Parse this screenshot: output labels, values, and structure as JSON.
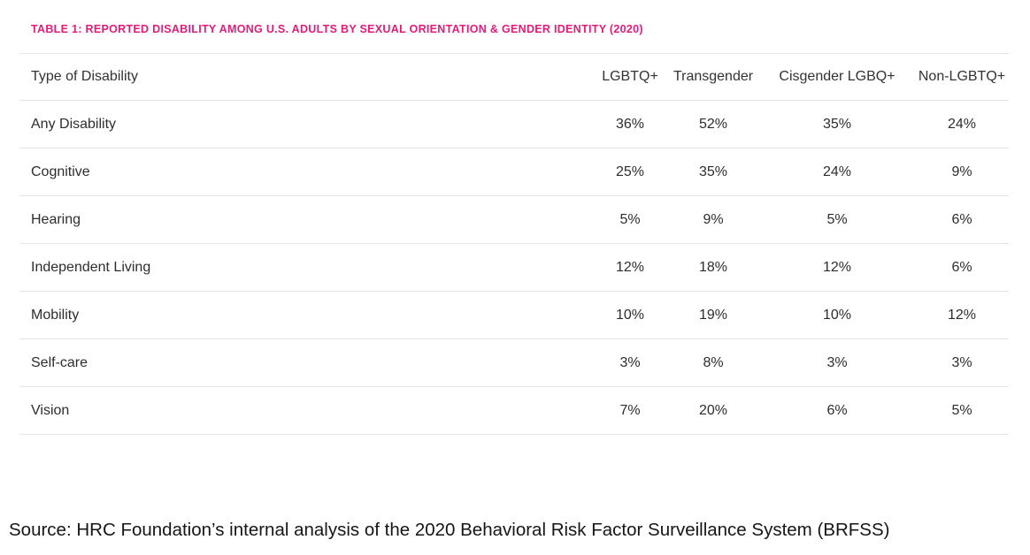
{
  "title": "TABLE 1: REPORTED DISABILITY AMONG U.S. ADULTS BY SEXUAL ORIENTATION & GENDER IDENTITY (2020)",
  "accent_color": "#e31c79",
  "divider_color": "#e3e3e3",
  "table": {
    "row_header_label": "Type of Disability",
    "columns": [
      "LGBTQ+",
      "Transgender",
      "Cisgender LGBQ+",
      "Non-LGBTQ+"
    ],
    "rows": [
      {
        "label": "Any Disability",
        "values": [
          "36%",
          "52%",
          "35%",
          "24%"
        ]
      },
      {
        "label": "Cognitive",
        "values": [
          "25%",
          "35%",
          "24%",
          "9%"
        ]
      },
      {
        "label": "Hearing",
        "values": [
          "5%",
          "9%",
          "5%",
          "6%"
        ]
      },
      {
        "label": "Independent Living",
        "values": [
          "12%",
          "18%",
          "12%",
          "6%"
        ]
      },
      {
        "label": "Mobility",
        "values": [
          "10%",
          "19%",
          "10%",
          "12%"
        ]
      },
      {
        "label": "Self-care",
        "values": [
          "3%",
          "8%",
          "3%",
          "3%"
        ]
      },
      {
        "label": "Vision",
        "values": [
          "7%",
          "20%",
          "6%",
          "5%"
        ]
      }
    ]
  },
  "source": "Source: HRC Foundation’s internal analysis of the 2020 Behavioral Risk Factor Surveillance System (BRFSS)",
  "chart_data": {
    "type": "table",
    "title": "TABLE 1: REPORTED DISABILITY AMONG U.S. ADULTS BY SEXUAL ORIENTATION & GENDER IDENTITY (2020)",
    "categories": [
      "Any Disability",
      "Cognitive",
      "Hearing",
      "Independent Living",
      "Mobility",
      "Self-care",
      "Vision"
    ],
    "series": [
      {
        "name": "LGBTQ+",
        "values": [
          36,
          25,
          5,
          12,
          10,
          3,
          7
        ]
      },
      {
        "name": "Transgender",
        "values": [
          52,
          35,
          9,
          18,
          19,
          8,
          20
        ]
      },
      {
        "name": "Cisgender LGBQ+",
        "values": [
          35,
          24,
          5,
          12,
          10,
          3,
          6
        ]
      },
      {
        "name": "Non-LGBTQ+",
        "values": [
          24,
          9,
          6,
          6,
          12,
          3,
          5
        ]
      }
    ],
    "unit": "%",
    "xlabel": "Type of Disability",
    "ylabel": "",
    "source": "Source: HRC Foundation’s internal analysis of the 2020 Behavioral Risk Factor Surveillance System (BRFSS)"
  }
}
